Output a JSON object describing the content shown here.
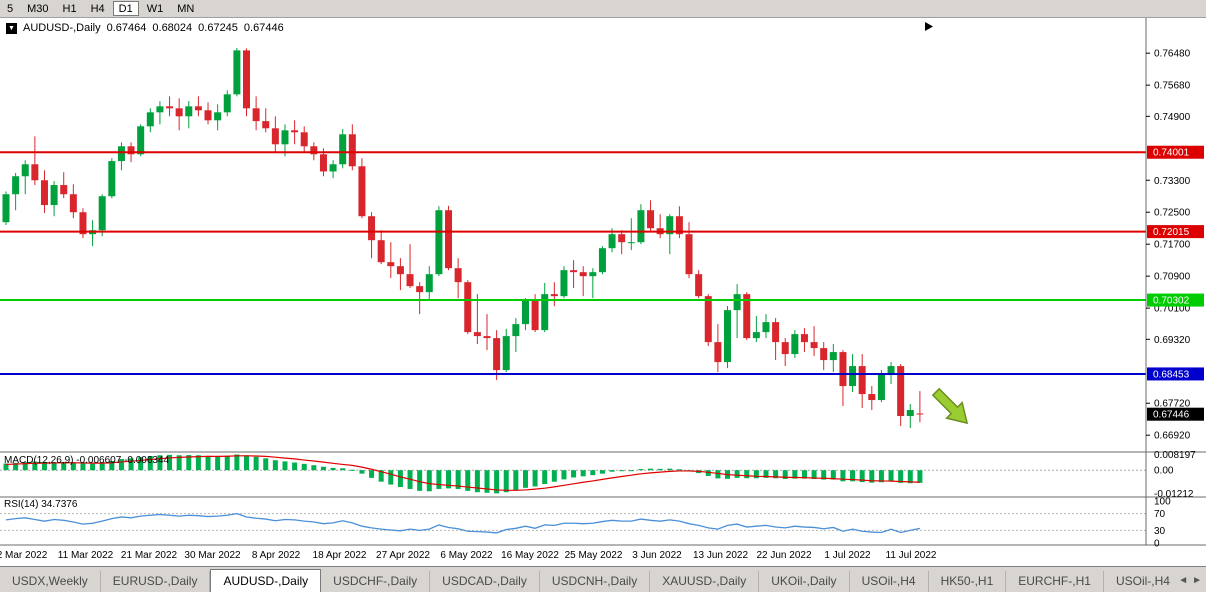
{
  "toolbar": {
    "buttons": [
      "5",
      "M30",
      "H1",
      "H4",
      "D1",
      "W1",
      "MN"
    ],
    "active": "D1"
  },
  "chart": {
    "legend": {
      "symbol": "AUDUSD-,Daily",
      "open": "0.67464",
      "high": "0.68024",
      "low": "0.67245",
      "close": "0.67446"
    },
    "macd_label": "MACD(12,26,9) -0.006607 -0.006344",
    "rsi_label": "RSI(14) 34.7376"
  },
  "chart_data": {
    "type": "candlestick",
    "symbol": "AUDUSD",
    "timeframe": "Daily",
    "price_range": {
      "min": 0.665,
      "max": 0.7736
    },
    "y_axis_ticks": [
      "0.76480",
      "0.75680",
      "0.74900",
      "0.73300",
      "0.72500",
      "0.71700",
      "0.70900",
      "0.70100",
      "0.69320",
      "0.67720",
      "0.66920"
    ],
    "hlines": [
      {
        "label": "0.74001",
        "color": "#dd0000"
      },
      {
        "label": "0.72015",
        "color": "#dd0000"
      },
      {
        "label": "0.70302",
        "color": "#00cc00"
      },
      {
        "label": "0.68453",
        "color": "#0000cc"
      }
    ],
    "current_price": {
      "label": "0.67446",
      "color": "#000000"
    },
    "colors": {
      "up": "#00a03c",
      "down": "#d8262c",
      "macd_bar": "#00b050",
      "macd_signal": "#e00000",
      "rsi_line": "#4a90d9"
    },
    "arrow": {
      "meaning": "bearish-continuation",
      "color": "#9acd32",
      "outline": "#6d8f1f"
    },
    "x_labels": [
      "2 Mar 2022",
      "11 Mar 2022",
      "21 Mar 2022",
      "30 Mar 2022",
      "8 Apr 2022",
      "18 Apr 2022",
      "27 Apr 2022",
      "6 May 2022",
      "16 May 2022",
      "25 May 2022",
      "3 Jun 2022",
      "13 Jun 2022",
      "22 Jun 2022",
      "1 Jul 2022",
      "11 Jul 2022"
    ],
    "candles": [
      [
        0.7225,
        0.7302,
        0.7218,
        0.7295
      ],
      [
        0.7295,
        0.7348,
        0.7255,
        0.734
      ],
      [
        0.734,
        0.738,
        0.7295,
        0.737
      ],
      [
        0.737,
        0.744,
        0.7318,
        0.733
      ],
      [
        0.733,
        0.7355,
        0.7248,
        0.7268
      ],
      [
        0.7268,
        0.7328,
        0.724,
        0.7318
      ],
      [
        0.7318,
        0.735,
        0.7285,
        0.7295
      ],
      [
        0.7295,
        0.732,
        0.7235,
        0.725
      ],
      [
        0.725,
        0.726,
        0.7185,
        0.7195
      ],
      [
        0.7195,
        0.723,
        0.7165,
        0.7205
      ],
      [
        0.7205,
        0.7295,
        0.719,
        0.729
      ],
      [
        0.729,
        0.7385,
        0.7285,
        0.7378
      ],
      [
        0.7378,
        0.7425,
        0.7355,
        0.7415
      ],
      [
        0.7415,
        0.7425,
        0.7375,
        0.7395
      ],
      [
        0.7395,
        0.747,
        0.739,
        0.7465
      ],
      [
        0.7465,
        0.751,
        0.745,
        0.75
      ],
      [
        0.75,
        0.7528,
        0.747,
        0.7515
      ],
      [
        0.7515,
        0.754,
        0.749,
        0.751
      ],
      [
        0.751,
        0.7535,
        0.7455,
        0.749
      ],
      [
        0.749,
        0.7528,
        0.746,
        0.7515
      ],
      [
        0.7515,
        0.754,
        0.749,
        0.7505
      ],
      [
        0.7505,
        0.7525,
        0.747,
        0.748
      ],
      [
        0.748,
        0.752,
        0.7455,
        0.75
      ],
      [
        0.75,
        0.7555,
        0.749,
        0.7545
      ],
      [
        0.7545,
        0.7661,
        0.754,
        0.7655
      ],
      [
        0.7655,
        0.766,
        0.749,
        0.751
      ],
      [
        0.751,
        0.754,
        0.7455,
        0.7478
      ],
      [
        0.7478,
        0.751,
        0.745,
        0.746
      ],
      [
        0.746,
        0.749,
        0.74,
        0.742
      ],
      [
        0.742,
        0.747,
        0.739,
        0.7455
      ],
      [
        0.7455,
        0.748,
        0.742,
        0.745
      ],
      [
        0.745,
        0.7465,
        0.74,
        0.7415
      ],
      [
        0.7415,
        0.7425,
        0.738,
        0.7395
      ],
      [
        0.7395,
        0.741,
        0.734,
        0.7352
      ],
      [
        0.7352,
        0.738,
        0.7335,
        0.737
      ],
      [
        0.737,
        0.7458,
        0.736,
        0.7445
      ],
      [
        0.7445,
        0.747,
        0.7355,
        0.7365
      ],
      [
        0.7365,
        0.7385,
        0.7235,
        0.724
      ],
      [
        0.724,
        0.725,
        0.7135,
        0.718
      ],
      [
        0.718,
        0.7205,
        0.712,
        0.7125
      ],
      [
        0.7125,
        0.7175,
        0.7085,
        0.7115
      ],
      [
        0.7115,
        0.7135,
        0.7055,
        0.7095
      ],
      [
        0.7095,
        0.717,
        0.706,
        0.7065
      ],
      [
        0.7065,
        0.7075,
        0.6995,
        0.705
      ],
      [
        0.705,
        0.7115,
        0.703,
        0.7095
      ],
      [
        0.7095,
        0.7265,
        0.709,
        0.7255
      ],
      [
        0.7255,
        0.7266,
        0.7105,
        0.711
      ],
      [
        0.711,
        0.7135,
        0.7035,
        0.7075
      ],
      [
        0.7075,
        0.708,
        0.6945,
        0.695
      ],
      [
        0.695,
        0.7045,
        0.692,
        0.694
      ],
      [
        0.694,
        0.6995,
        0.6905,
        0.6935
      ],
      [
        0.6935,
        0.6955,
        0.683,
        0.6855
      ],
      [
        0.6855,
        0.6958,
        0.685,
        0.694
      ],
      [
        0.694,
        0.6985,
        0.69,
        0.697
      ],
      [
        0.697,
        0.7035,
        0.6955,
        0.703
      ],
      [
        0.703,
        0.7045,
        0.695,
        0.6955
      ],
      [
        0.6955,
        0.7073,
        0.695,
        0.7045
      ],
      [
        0.7045,
        0.7075,
        0.7015,
        0.704
      ],
      [
        0.704,
        0.7115,
        0.7035,
        0.7105
      ],
      [
        0.7105,
        0.713,
        0.706,
        0.71
      ],
      [
        0.71,
        0.7115,
        0.704,
        0.709
      ],
      [
        0.709,
        0.711,
        0.7035,
        0.71
      ],
      [
        0.71,
        0.7165,
        0.7095,
        0.716
      ],
      [
        0.716,
        0.721,
        0.715,
        0.7195
      ],
      [
        0.7195,
        0.7205,
        0.7145,
        0.7175
      ],
      [
        0.7175,
        0.7235,
        0.7155,
        0.7175
      ],
      [
        0.7175,
        0.727,
        0.717,
        0.7255
      ],
      [
        0.7255,
        0.728,
        0.72,
        0.721
      ],
      [
        0.721,
        0.7245,
        0.7185,
        0.7195
      ],
      [
        0.7195,
        0.7245,
        0.7145,
        0.724
      ],
      [
        0.724,
        0.7265,
        0.7185,
        0.7195
      ],
      [
        0.7195,
        0.7225,
        0.7085,
        0.7095
      ],
      [
        0.7095,
        0.7105,
        0.7035,
        0.704
      ],
      [
        0.704,
        0.7045,
        0.6915,
        0.6925
      ],
      [
        0.6925,
        0.697,
        0.685,
        0.6875
      ],
      [
        0.6875,
        0.7015,
        0.686,
        0.7005
      ],
      [
        0.7005,
        0.707,
        0.6935,
        0.7045
      ],
      [
        0.7045,
        0.705,
        0.693,
        0.6935
      ],
      [
        0.6935,
        0.699,
        0.6925,
        0.695
      ],
      [
        0.695,
        0.6995,
        0.6935,
        0.6975
      ],
      [
        0.6975,
        0.6985,
        0.688,
        0.6925
      ],
      [
        0.6925,
        0.6935,
        0.6865,
        0.6895
      ],
      [
        0.6895,
        0.6955,
        0.6885,
        0.6945
      ],
      [
        0.6945,
        0.696,
        0.69,
        0.6925
      ],
      [
        0.6925,
        0.6965,
        0.689,
        0.691
      ],
      [
        0.691,
        0.6925,
        0.6855,
        0.688
      ],
      [
        0.688,
        0.692,
        0.685,
        0.69
      ],
      [
        0.69,
        0.6905,
        0.6765,
        0.6815
      ],
      [
        0.6815,
        0.6895,
        0.68,
        0.6865
      ],
      [
        0.6865,
        0.6895,
        0.676,
        0.6795
      ],
      [
        0.6795,
        0.6815,
        0.6755,
        0.678
      ],
      [
        0.678,
        0.6855,
        0.6775,
        0.6845
      ],
      [
        0.6845,
        0.6875,
        0.682,
        0.6865
      ],
      [
        0.6865,
        0.687,
        0.6715,
        0.674
      ],
      [
        0.674,
        0.677,
        0.671,
        0.6755
      ],
      [
        0.67464,
        0.68024,
        0.67245,
        0.67446
      ]
    ],
    "macd": {
      "axis_labels": [
        "0.008197",
        "0.00",
        "-0.01212"
      ],
      "range": {
        "min": -0.014,
        "max": 0.0095
      },
      "histogram": [
        0.0035,
        0.0038,
        0.0042,
        0.0045,
        0.0043,
        0.004,
        0.0042,
        0.004,
        0.0036,
        0.0034,
        0.0038,
        0.0048,
        0.0058,
        0.0062,
        0.0068,
        0.0074,
        0.0078,
        0.008,
        0.0078,
        0.0079,
        0.0078,
        0.0075,
        0.0074,
        0.0076,
        0.0082,
        0.0078,
        0.007,
        0.0062,
        0.0052,
        0.0046,
        0.004,
        0.0033,
        0.0026,
        0.0018,
        0.0012,
        0.001,
        0.0002,
        -0.0018,
        -0.004,
        -0.006,
        -0.0075,
        -0.0088,
        -0.0098,
        -0.0108,
        -0.011,
        -0.0098,
        -0.0095,
        -0.0098,
        -0.0108,
        -0.0115,
        -0.0118,
        -0.0121,
        -0.0115,
        -0.0105,
        -0.0092,
        -0.0085,
        -0.0072,
        -0.006,
        -0.0048,
        -0.0038,
        -0.0032,
        -0.0026,
        -0.0018,
        -0.0008,
        -0.0004,
        -0.0002,
        0.0006,
        0.0008,
        0.0007,
        0.0008,
        0.0005,
        -0.0004,
        -0.0015,
        -0.003,
        -0.0043,
        -0.0045,
        -0.004,
        -0.0042,
        -0.0042,
        -0.004,
        -0.0042,
        -0.0046,
        -0.0044,
        -0.0044,
        -0.0046,
        -0.0049,
        -0.0049,
        -0.0058,
        -0.0058,
        -0.0062,
        -0.0065,
        -0.0063,
        -0.0059,
        -0.0066,
        -0.0068,
        -0.0066
      ],
      "signal": [
        0.003,
        0.0032,
        0.0034,
        0.0036,
        0.0037,
        0.0038,
        0.0039,
        0.0039,
        0.0038,
        0.0037,
        0.0037,
        0.0039,
        0.0043,
        0.0047,
        0.0051,
        0.0056,
        0.006,
        0.0064,
        0.0067,
        0.0069,
        0.0071,
        0.0072,
        0.0072,
        0.0073,
        0.0075,
        0.0075,
        0.0074,
        0.0072,
        0.0068,
        0.0063,
        0.0059,
        0.0053,
        0.0048,
        0.0042,
        0.0036,
        0.003,
        0.0025,
        0.0016,
        0.0005,
        -0.0008,
        -0.0021,
        -0.0035,
        -0.0047,
        -0.006,
        -0.007,
        -0.0075,
        -0.0079,
        -0.0083,
        -0.0088,
        -0.0093,
        -0.0098,
        -0.0103,
        -0.0105,
        -0.0105,
        -0.0103,
        -0.0099,
        -0.0094,
        -0.0087,
        -0.0079,
        -0.0071,
        -0.0063,
        -0.0056,
        -0.0048,
        -0.004,
        -0.0033,
        -0.0026,
        -0.0019,
        -0.0014,
        -0.001,
        -0.0006,
        -0.0004,
        -0.0004,
        -0.0006,
        -0.0011,
        -0.0017,
        -0.0023,
        -0.0026,
        -0.0029,
        -0.0032,
        -0.0033,
        -0.0035,
        -0.0037,
        -0.0038,
        -0.0039,
        -0.0041,
        -0.0042,
        -0.0044,
        -0.0047,
        -0.0049,
        -0.0052,
        -0.0055,
        -0.0056,
        -0.0057,
        -0.0059,
        -0.0061,
        -0.0063
      ]
    },
    "rsi": {
      "axis_labels": [
        "100",
        "70",
        "30",
        "0"
      ],
      "levels": [
        70,
        30
      ],
      "range": {
        "min": 0,
        "max": 100
      },
      "values": [
        55,
        58,
        60,
        56,
        52,
        56,
        54,
        50,
        45,
        47,
        52,
        58,
        62,
        60,
        64,
        66,
        68,
        66,
        64,
        66,
        65,
        63,
        64,
        66,
        70,
        62,
        59,
        57,
        53,
        56,
        55,
        52,
        50,
        46,
        48,
        53,
        48,
        40,
        36,
        33,
        31,
        29,
        33,
        30,
        33,
        43,
        37,
        34,
        28,
        27,
        26,
        24,
        32,
        35,
        40,
        35,
        43,
        42,
        47,
        47,
        46,
        47,
        51,
        54,
        52,
        52,
        57,
        54,
        52,
        55,
        52,
        46,
        42,
        36,
        33,
        42,
        45,
        38,
        40,
        42,
        38,
        36,
        40,
        38,
        37,
        34,
        37,
        28,
        33,
        28,
        26,
        25,
        33,
        25,
        30,
        34.7
      ]
    }
  },
  "tabs": {
    "items": [
      "USDX,Weekly",
      "EURUSD-,Daily",
      "AUDUSD-,Daily",
      "USDCHF-,Daily",
      "USDCAD-,Daily",
      "USDCNH-,Daily",
      "XAUUSD-,Daily",
      "UKOil-,Daily",
      "USOil-,H4",
      "HK50-,H1",
      "EURCHF-,H1",
      "USOil-,H4"
    ],
    "active_index": 2,
    "scroll_left": "◄",
    "scroll_right": "►"
  },
  "legend_icon": "▼"
}
